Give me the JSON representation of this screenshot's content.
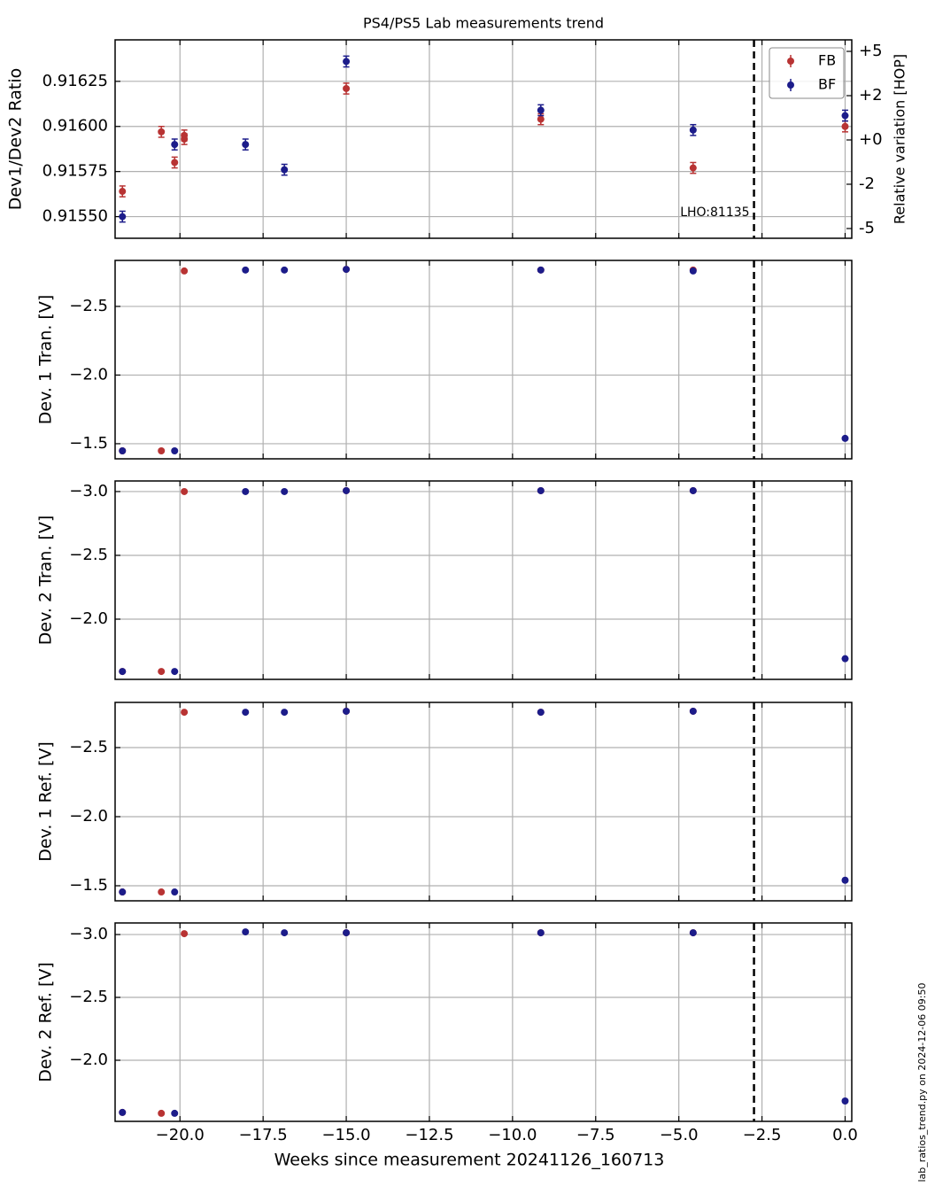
{
  "chart_data": [
    {
      "type": "scatter",
      "title": "PS4/PS5 Lab measurements trend",
      "ylabel": "Dev1/Dev2 Ratio",
      "y2label": "Relative variation [HOP]",
      "xlim": [
        -21.95,
        0.2
      ],
      "xticks": [
        -20,
        -17.5,
        -15,
        -12.5,
        -10,
        -7.5,
        -5,
        -2.5,
        0
      ],
      "ylim": [
        0.91538,
        0.91648
      ],
      "yticks": [
        {
          "value": 0.9155,
          "label": "0.91550"
        },
        0.91575,
        {
          "value": 0.916,
          "label": "0.91600"
        },
        0.91625
      ],
      "y2lim": [
        -5.55,
        5.65
      ],
      "y2ticks": [
        {
          "value": -5,
          "label": "-5"
        },
        {
          "value": -2.5,
          "label": "-2"
        },
        {
          "value": 0,
          "label": "+0"
        },
        {
          "value": 2.5,
          "label": "+2"
        },
        {
          "value": 5,
          "label": "+5"
        }
      ],
      "vline": -2.74,
      "annotation": "LHO:81135",
      "grid": true,
      "legend": "upper right",
      "series": [
        {
          "name": "FB",
          "color": "#b83333",
          "x": [
            -21.73,
            -20.56,
            -20.16,
            -19.87,
            -19.87,
            -15.0,
            -9.15,
            -4.57,
            0.0
          ],
          "values": [
            0.91564,
            0.91597,
            0.9158,
            0.91593,
            0.91595,
            0.91621,
            0.91604,
            0.91577,
            0.916
          ],
          "errors": [
            3e-05,
            3e-05,
            3e-05,
            3e-05,
            3e-05,
            3e-05,
            3e-05,
            3e-05,
            3e-05
          ]
        },
        {
          "name": "BF",
          "color": "#1c1c8a",
          "x": [
            -21.73,
            -20.16,
            -18.03,
            -16.86,
            -15.0,
            -9.15,
            -4.57,
            0.0
          ],
          "values": [
            0.9155,
            0.9159,
            0.9159,
            0.91576,
            0.91636,
            0.91609,
            0.91598,
            0.91606
          ],
          "errors": [
            3e-05,
            3e-05,
            3e-05,
            3e-05,
            3e-05,
            3e-05,
            3e-05,
            3e-05
          ]
        }
      ]
    },
    {
      "type": "scatter",
      "ylabel": "Dev. 1 Tran. [V]",
      "xlim": [
        -21.95,
        0.2
      ],
      "xticks": [
        -20,
        -17.5,
        -15,
        -12.5,
        -10,
        -7.5,
        -5,
        -2.5,
        0
      ],
      "ylim": [
        -1.39,
        -2.835
      ],
      "yticks": [
        {
          "value": -1.5,
          "label": "−1.5"
        },
        {
          "value": -2.0,
          "label": "−2.0"
        },
        {
          "value": -2.5,
          "label": "−2.5"
        }
      ],
      "vline": -2.74,
      "grid": true,
      "series": [
        {
          "name": "FB",
          "color": "#b83333",
          "x": [
            -21.73,
            -20.56,
            -19.87,
            -15.0,
            -9.15,
            -4.57
          ],
          "values": [
            -1.448,
            -1.448,
            -2.758,
            -2.77,
            -2.765,
            -2.765
          ]
        },
        {
          "name": "BF",
          "color": "#1c1c8a",
          "x": [
            -21.73,
            -20.16,
            -18.03,
            -16.86,
            -15.0,
            -9.15,
            -4.57,
            0.0
          ],
          "values": [
            -1.448,
            -1.448,
            -2.765,
            -2.765,
            -2.77,
            -2.765,
            -2.758,
            -1.539
          ]
        }
      ]
    },
    {
      "type": "scatter",
      "ylabel": "Dev. 2 Tran. [V]",
      "xlim": [
        -21.95,
        0.2
      ],
      "xticks": [
        -20,
        -17.5,
        -15,
        -12.5,
        -10,
        -7.5,
        -5,
        -2.5,
        0
      ],
      "ylim": [
        -1.528,
        -3.083
      ],
      "yticks": [
        {
          "value": -2.0,
          "label": "−2.0"
        },
        {
          "value": -2.5,
          "label": "−2.5"
        },
        {
          "value": -3.0,
          "label": "−3.0"
        }
      ],
      "vline": -2.74,
      "grid": true,
      "series": [
        {
          "name": "FB",
          "color": "#b83333",
          "x": [
            -21.73,
            -20.56,
            -19.87,
            -15.0,
            -9.15,
            -4.57
          ],
          "values": [
            -1.59,
            -1.59,
            -3.0,
            -3.007,
            -3.007,
            -3.007
          ]
        },
        {
          "name": "BF",
          "color": "#1c1c8a",
          "x": [
            -21.73,
            -20.16,
            -18.03,
            -16.86,
            -15.0,
            -9.15,
            -4.57,
            0.0
          ],
          "values": [
            -1.59,
            -1.59,
            -3.0,
            -3.0,
            -3.007,
            -3.007,
            -3.007,
            -1.69
          ]
        }
      ]
    },
    {
      "type": "scatter",
      "ylabel": "Dev. 1 Ref. [V]",
      "xlim": [
        -21.95,
        0.2
      ],
      "xticks": [
        -20,
        -17.5,
        -15,
        -12.5,
        -10,
        -7.5,
        -5,
        -2.5,
        0
      ],
      "ylim": [
        -1.391,
        -2.827
      ],
      "yticks": [
        {
          "value": -1.5,
          "label": "−1.5"
        },
        {
          "value": -2.0,
          "label": "−2.0"
        },
        {
          "value": -2.5,
          "label": "−2.5"
        }
      ],
      "vline": -2.74,
      "grid": true,
      "series": [
        {
          "name": "FB",
          "color": "#b83333",
          "x": [
            -21.73,
            -20.56,
            -19.87,
            -15.0,
            -9.15,
            -4.57
          ],
          "values": [
            -1.455,
            -1.455,
            -2.756,
            -2.763,
            -2.756,
            -2.763
          ]
        },
        {
          "name": "BF",
          "color": "#1c1c8a",
          "x": [
            -21.73,
            -20.16,
            -18.03,
            -16.86,
            -15.0,
            -9.15,
            -4.57,
            0.0
          ],
          "values": [
            -1.455,
            -1.455,
            -2.756,
            -2.756,
            -2.763,
            -2.756,
            -2.763,
            -1.54
          ]
        }
      ]
    },
    {
      "type": "scatter",
      "ylabel": "Dev. 2 Ref. [V]",
      "xlabel": "Weeks since measurement 20241126_160713",
      "xlim": [
        -21.95,
        0.2
      ],
      "xticks": [
        {
          "value": -20,
          "label": "−20.0"
        },
        {
          "value": -17.5,
          "label": "−17.5"
        },
        {
          "value": -15,
          "label": "−15.0"
        },
        {
          "value": -12.5,
          "label": "−12.5"
        },
        {
          "value": -10,
          "label": "−10.0"
        },
        {
          "value": -7.5,
          "label": "−7.5"
        },
        {
          "value": -5,
          "label": "−5.0"
        },
        {
          "value": -2.5,
          "label": "−2.5"
        },
        {
          "value": 0,
          "label": "0.0"
        }
      ],
      "ylim": [
        -1.514,
        -3.092
      ],
      "yticks": [
        {
          "value": -2.0,
          "label": "−2.0"
        },
        {
          "value": -2.5,
          "label": "−2.5"
        },
        {
          "value": -3.0,
          "label": "−3.0"
        }
      ],
      "vline": -2.74,
      "grid": true,
      "series": [
        {
          "name": "FB",
          "color": "#b83333",
          "x": [
            -21.73,
            -20.56,
            -19.87,
            -15.0,
            -9.15,
            -4.57
          ],
          "values": [
            -1.585,
            -1.578,
            -3.007,
            -3.014,
            -3.014,
            -3.014
          ]
        },
        {
          "name": "BF",
          "color": "#1c1c8a",
          "x": [
            -21.73,
            -20.16,
            -18.03,
            -16.86,
            -15.0,
            -9.15,
            -4.57,
            0.0
          ],
          "values": [
            -1.585,
            -1.578,
            -3.021,
            -3.014,
            -3.014,
            -3.014,
            -3.014,
            -1.676
          ]
        }
      ]
    }
  ],
  "footer": "lab_ratios_trend.py on 2024-12-06 09:50"
}
